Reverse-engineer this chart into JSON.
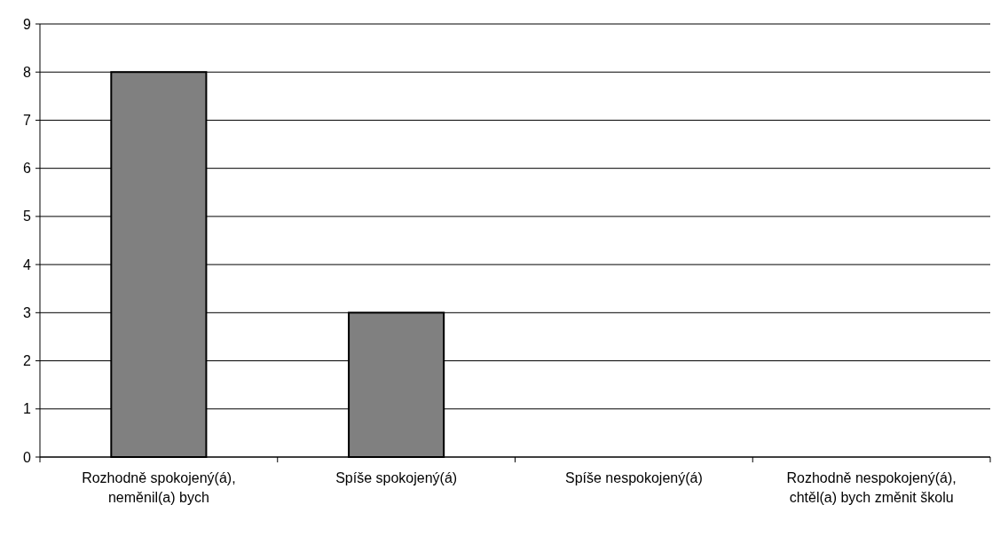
{
  "chart_data": {
    "type": "bar",
    "categories": [
      "Rozhodně spokojený(á), neměnil(a) bych",
      "Spíše spokojený(á)",
      "Spíše nespokojený(á)",
      "Rozhodně nespokojený(á), chtěl(a) bych změnit školu"
    ],
    "values": [
      8,
      3,
      0,
      0
    ],
    "color": "#808080",
    "ylim": [
      0,
      9
    ],
    "yticks": [
      0,
      1,
      2,
      3,
      4,
      5,
      6,
      7,
      8,
      9
    ],
    "grid": "y"
  }
}
